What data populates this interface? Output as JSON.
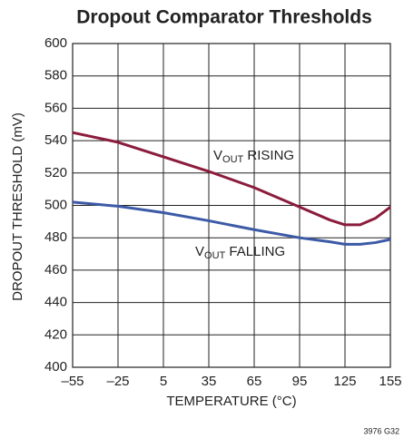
{
  "chart_data": {
    "type": "line",
    "title": "Dropout Comparator Thresholds",
    "xlabel": "TEMPERATURE (°C)",
    "ylabel": "DROPOUT THRESHOLD (mV)",
    "footnote": "3976 G32",
    "x": [
      -55,
      -25,
      5,
      35,
      65,
      95,
      115,
      125,
      135,
      145,
      155
    ],
    "series": [
      {
        "name": [
          "V",
          "OUT",
          " RISING"
        ],
        "color": "#8b1c3c",
        "values": [
          545,
          539,
          530,
          521,
          511,
          499,
          491,
          488,
          488,
          492,
          499
        ]
      },
      {
        "name": [
          "V",
          "OUT",
          " FALLING"
        ],
        "color": "#3c5aa6",
        "values": [
          502,
          499.5,
          495.5,
          490.5,
          485,
          480,
          477.5,
          476,
          476,
          477,
          479
        ]
      }
    ],
    "xlim": [
      -55,
      155
    ],
    "ylim": [
      400,
      600
    ],
    "xticks": [
      {
        "value": -55,
        "label": "–55"
      },
      {
        "value": -25,
        "label": "–25"
      },
      5,
      35,
      65,
      95,
      125,
      155
    ],
    "yticks": [
      400,
      420,
      440,
      460,
      480,
      500,
      520,
      540,
      560,
      580,
      600
    ],
    "grid": true
  }
}
